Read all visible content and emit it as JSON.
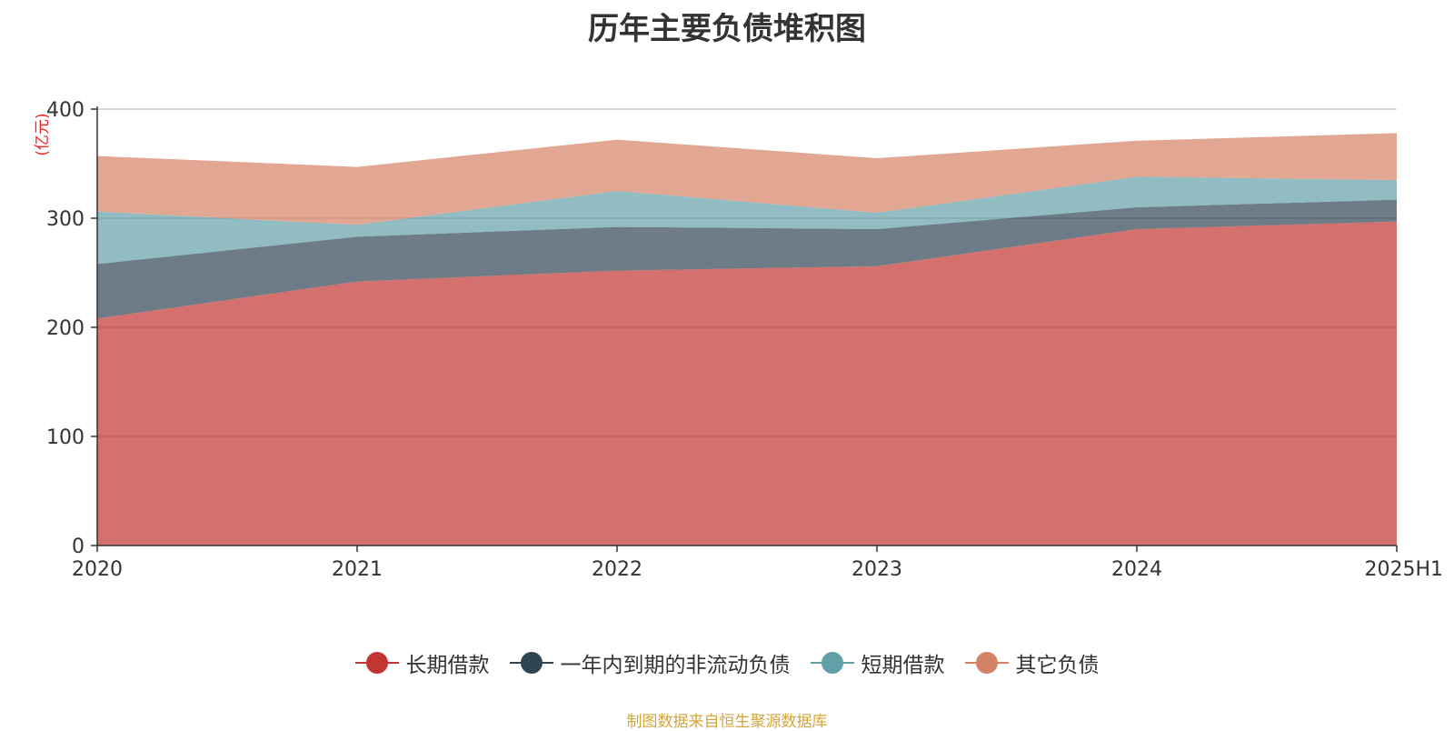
{
  "chart_data": {
    "type": "area",
    "stacked": true,
    "title": "历年主要负债堆积图",
    "ylabel": "(亿元)",
    "xlabel": "",
    "categories": [
      "2020",
      "2021",
      "2022",
      "2023",
      "2024",
      "2025H1"
    ],
    "ylim": [
      0,
      400
    ],
    "yticks": [
      0,
      100,
      200,
      300,
      400
    ],
    "grid": true,
    "legend_position": "bottom",
    "series": [
      {
        "name": "长期借款",
        "color": "#c23531",
        "values": [
          208,
          242,
          252,
          256,
          290,
          297
        ]
      },
      {
        "name": "一年内到期的非流动负债",
        "color": "#2f4554",
        "values": [
          50,
          41,
          40,
          34,
          20,
          20
        ]
      },
      {
        "name": "短期借款",
        "color": "#61a0a8",
        "values": [
          48,
          11,
          33,
          15,
          28,
          18
        ]
      },
      {
        "name": "其它负债",
        "color": "#d48265",
        "values": [
          51,
          53,
          47,
          50,
          33,
          43
        ]
      }
    ]
  },
  "source_note": "制图数据来自恒生聚源数据库"
}
